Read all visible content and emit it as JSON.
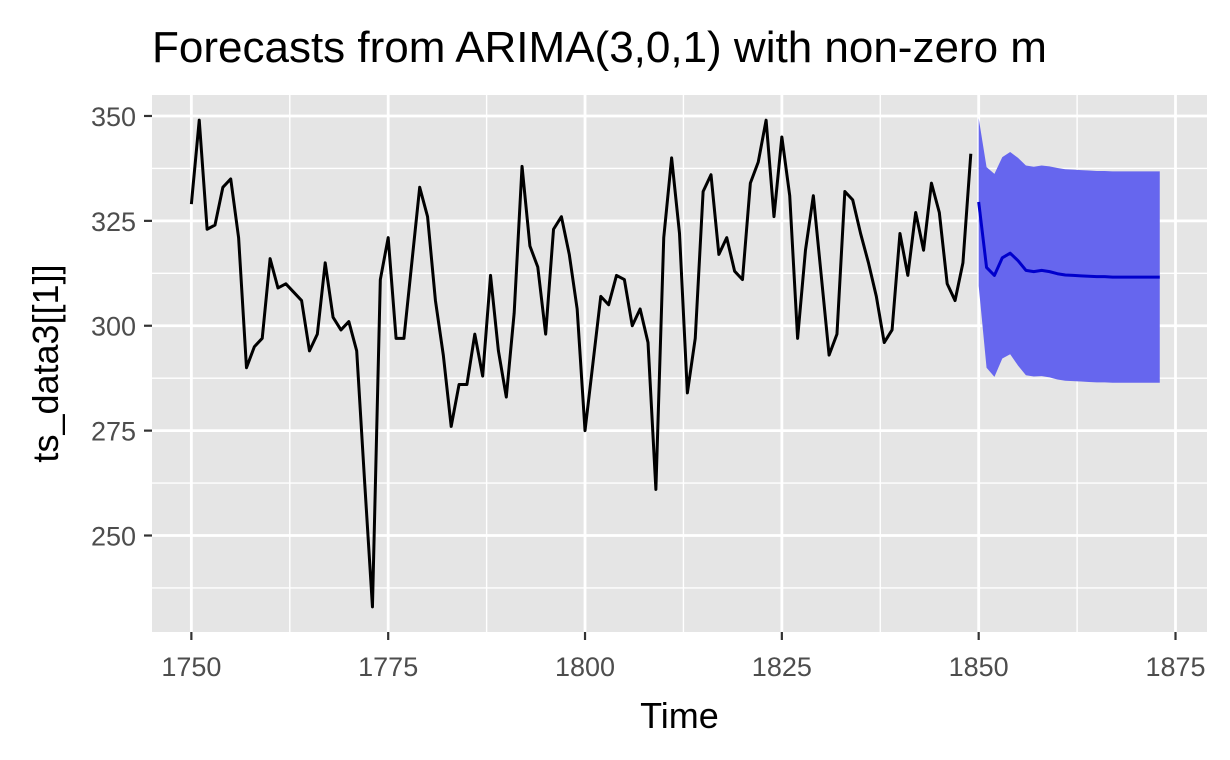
{
  "chart_data": {
    "type": "line",
    "title": "Forecasts from ARIMA(3,0,1) with non-zero m",
    "xlabel": "Time",
    "ylabel": "ts_data3[[1]]",
    "xlim": [
      1745,
      1879
    ],
    "ylim": [
      227,
      355
    ],
    "x_ticks": [
      1750,
      1775,
      1800,
      1825,
      1850,
      1875
    ],
    "y_ticks": [
      250,
      275,
      300,
      325,
      350
    ],
    "x_tick_labels": [
      "1750",
      "1775",
      "1800",
      "1825",
      "1850",
      "1875"
    ],
    "y_tick_labels": [
      "250",
      "275",
      "300",
      "325",
      "350"
    ],
    "grid": true,
    "colors": {
      "panel": "#e5e5e5",
      "grid": "#ffffff",
      "observed": "#000000",
      "forecast": "#0000cc",
      "interval": "#6666ee"
    },
    "observed": {
      "x_start": 1750,
      "values": [
        329,
        349,
        323,
        324,
        333,
        335,
        321,
        290,
        295,
        297,
        316,
        309,
        310,
        308,
        306,
        294,
        298,
        315,
        302,
        299,
        301,
        294,
        263,
        233,
        311,
        321,
        297,
        297,
        315,
        333,
        326,
        306,
        293,
        276,
        286,
        286,
        298,
        288,
        312,
        294,
        283,
        303,
        338,
        319,
        314,
        298,
        323,
        326,
        317,
        304,
        275,
        291,
        307,
        305,
        312,
        311,
        300,
        304,
        296,
        261,
        321,
        340,
        322,
        284,
        297,
        332,
        336,
        317,
        321,
        313,
        311,
        334,
        339,
        349,
        326,
        345,
        331,
        297,
        318,
        331,
        312,
        293,
        298,
        332,
        330,
        322,
        315,
        307,
        296,
        299,
        322,
        312,
        327,
        318,
        334,
        327,
        310,
        306,
        315,
        341
      ]
    },
    "forecast": {
      "x_start": 1850,
      "mean": [
        329.5,
        313.9,
        312.0,
        316.2,
        317.3,
        315.5,
        313.2,
        312.9,
        313.2,
        312.9,
        312.4,
        312.1,
        312.0,
        311.9,
        311.8,
        311.7,
        311.7,
        311.6,
        311.6,
        311.6,
        311.6,
        311.6,
        311.6,
        311.6
      ],
      "lower": [
        309.5,
        290.0,
        287.8,
        292.2,
        293.2,
        290.5,
        288.2,
        287.9,
        288.0,
        287.7,
        287.2,
        286.9,
        286.8,
        286.7,
        286.6,
        286.5,
        286.5,
        286.4,
        286.4,
        286.4,
        286.4,
        286.4,
        286.4,
        286.4
      ],
      "upper": [
        349.5,
        337.8,
        336.2,
        340.2,
        341.4,
        340.0,
        338.2,
        337.9,
        338.2,
        338.0,
        337.6,
        337.3,
        337.2,
        337.1,
        337.0,
        336.9,
        336.9,
        336.8,
        336.8,
        336.8,
        336.8,
        336.8,
        336.8,
        336.8
      ]
    }
  }
}
